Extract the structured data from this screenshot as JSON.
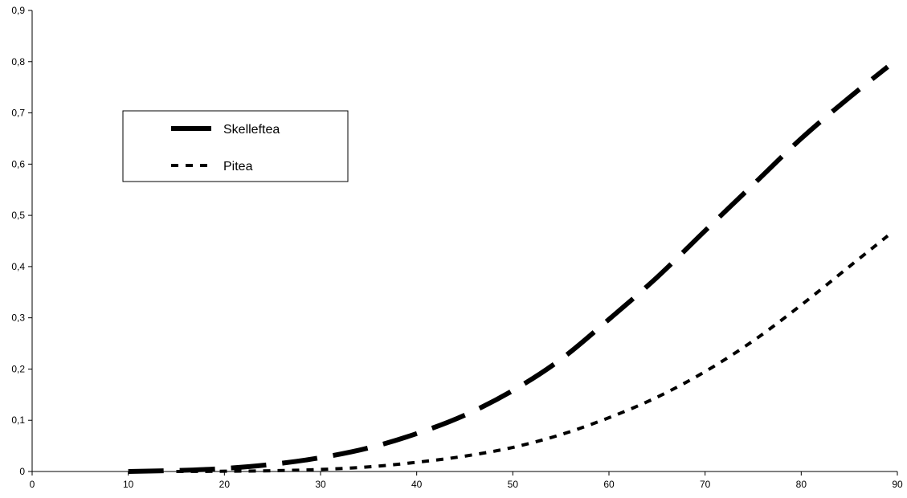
{
  "chart_data": {
    "type": "line",
    "title": "",
    "xlabel": "",
    "ylabel": "",
    "xlim": [
      0,
      90
    ],
    "ylim": [
      0,
      0.9
    ],
    "x_ticks": [
      0,
      10,
      20,
      30,
      40,
      50,
      60,
      70,
      80,
      90
    ],
    "y_ticks": [
      0,
      0.1,
      0.2,
      0.3,
      0.4,
      0.5,
      0.6,
      0.7,
      0.8,
      0.9
    ],
    "x_tick_labels": [
      "0",
      "10",
      "20",
      "30",
      "40",
      "50",
      "60",
      "70",
      "80",
      "90"
    ],
    "y_tick_labels": [
      "0",
      "0,1",
      "0,2",
      "0,3",
      "0,4",
      "0,5",
      "0,6",
      "0,7",
      "0,8",
      "0,9"
    ],
    "grid": false,
    "legend_position": "top-left",
    "series": [
      {
        "name": "Skelleftea",
        "style": "long-dash",
        "color": "#000000",
        "x": [
          10,
          15,
          20,
          25,
          30,
          35,
          40,
          45,
          50,
          55,
          60,
          65,
          70,
          75,
          80,
          85,
          89
        ],
        "y": [
          0,
          0.002,
          0.006,
          0.014,
          0.027,
          0.046,
          0.074,
          0.11,
          0.158,
          0.219,
          0.297,
          0.379,
          0.47,
          0.56,
          0.65,
          0.73,
          0.79
        ]
      },
      {
        "name": "Pitea",
        "style": "short-dash",
        "color": "#000000",
        "x": [
          15,
          20,
          25,
          30,
          35,
          40,
          45,
          50,
          55,
          60,
          65,
          70,
          75,
          80,
          85,
          89
        ],
        "y": [
          0,
          0.0005,
          0.0015,
          0.004,
          0.009,
          0.018,
          0.03,
          0.047,
          0.072,
          0.105,
          0.145,
          0.195,
          0.255,
          0.325,
          0.4,
          0.46
        ]
      }
    ]
  }
}
